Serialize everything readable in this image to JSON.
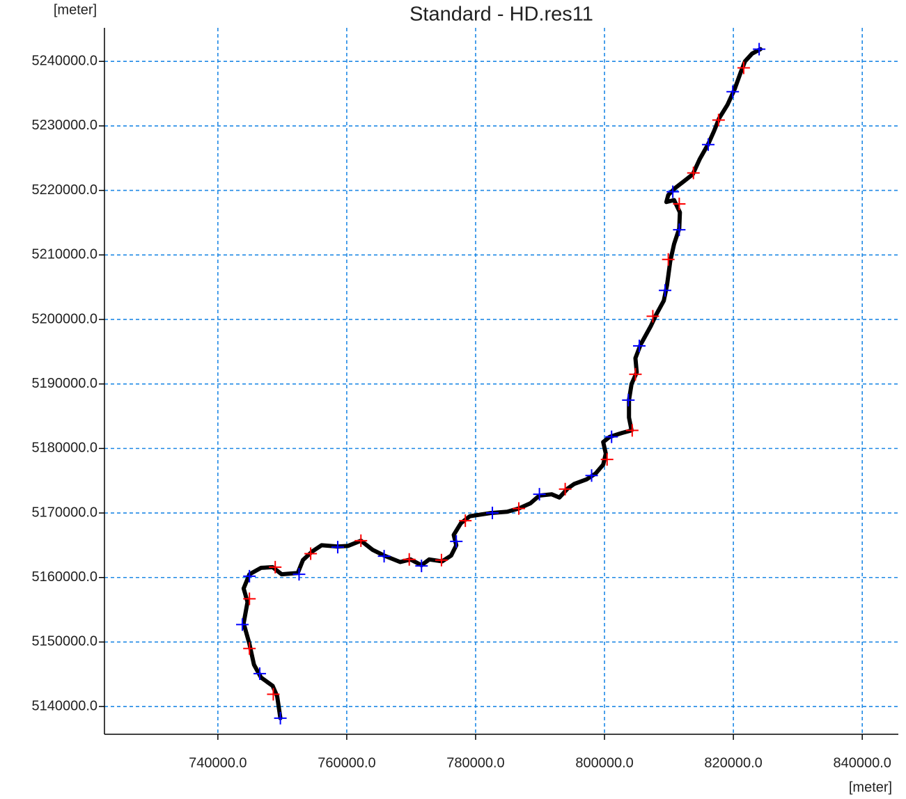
{
  "chart_data": {
    "type": "line",
    "title": "Standard - HD.res11",
    "y_label": "[meter]",
    "x_label": "[meter]",
    "xlim": [
      722400,
      845600
    ],
    "ylim": [
      5135700,
      5245200
    ],
    "xticks": [
      {
        "value": 740000,
        "label": "740000.0"
      },
      {
        "value": 760000,
        "label": "760000.0"
      },
      {
        "value": 780000,
        "label": "780000.0"
      },
      {
        "value": 800000,
        "label": "800000.0"
      },
      {
        "value": 820000,
        "label": "820000.0"
      },
      {
        "value": 840000,
        "label": "840000.0"
      }
    ],
    "yticks": [
      {
        "value": 5140000,
        "label": "5140000.0"
      },
      {
        "value": 5150000,
        "label": "5150000.0"
      },
      {
        "value": 5160000,
        "label": "5160000.0"
      },
      {
        "value": 5170000,
        "label": "5170000.0"
      },
      {
        "value": 5180000,
        "label": "5180000.0"
      },
      {
        "value": 5190000,
        "label": "5190000.0"
      },
      {
        "value": 5200000,
        "label": "5200000.0"
      },
      {
        "value": 5210000,
        "label": "5210000.0"
      },
      {
        "value": 5220000,
        "label": "5220000.0"
      },
      {
        "value": 5230000,
        "label": "5230000.0"
      },
      {
        "value": 5240000,
        "label": "5240000.0"
      }
    ],
    "grid": true,
    "series": [
      {
        "color": "#000000",
        "marker": "none",
        "x": [
          749700,
          749200,
          748500,
          746700,
          745600,
          744900,
          744000,
          744600,
          744000,
          744900,
          746700,
          748500,
          749900,
          752400,
          753200,
          754600,
          756100,
          758600,
          760200,
          762200,
          764000,
          765800,
          768300,
          769900,
          771600,
          772800,
          774800,
          776200,
          777000,
          776600,
          777700,
          779100,
          782400,
          784900,
          786700,
          788500,
          789900,
          791800,
          793000,
          794300,
          795300,
          797200,
          798600,
          799800,
          800200,
          799800,
          800800,
          802700,
          804200,
          803800,
          803800,
          804200,
          805000,
          804800,
          805600,
          807200,
          808000,
          809200,
          809700,
          810200,
          810800,
          811600,
          811700,
          810800,
          809600,
          809900,
          811000,
          812300,
          813700,
          814800,
          816100,
          817000,
          817800,
          819100,
          820200,
          821100,
          821800,
          822900,
          824200
        ],
        "values": [
          5138200,
          5141600,
          5143200,
          5144500,
          5146500,
          5149700,
          5152900,
          5156200,
          5158300,
          5160500,
          5161500,
          5161600,
          5160500,
          5160700,
          5162700,
          5164000,
          5165000,
          5164800,
          5164900,
          5165700,
          5164300,
          5163400,
          5162400,
          5162800,
          5161900,
          5162800,
          5162500,
          5163400,
          5165000,
          5166600,
          5168400,
          5169500,
          5170000,
          5170200,
          5170700,
          5171500,
          5172700,
          5172900,
          5172400,
          5173800,
          5174500,
          5175200,
          5176100,
          5177500,
          5179200,
          5181000,
          5181800,
          5182400,
          5182800,
          5184800,
          5187500,
          5190000,
          5191800,
          5194000,
          5196100,
          5199000,
          5200700,
          5202900,
          5205300,
          5209000,
          5211700,
          5214100,
          5216600,
          5218500,
          5218200,
          5219300,
          5220400,
          5221400,
          5222500,
          5224900,
          5227200,
          5229200,
          5231200,
          5233300,
          5235700,
          5238200,
          5240000,
          5241200,
          5241900
        ]
      },
      {
        "color": "#ff0000",
        "marker": "cross",
        "x": [
          748600,
          744900,
          744900,
          748900,
          754400,
          762200,
          769700,
          774700,
          778400,
          786700,
          793900,
          800400,
          804300,
          804800,
          807500,
          809900,
          811600,
          813800,
          817700,
          821600
        ],
        "values": [
          5141900,
          5149000,
          5156700,
          5161600,
          5163700,
          5165700,
          5162800,
          5162700,
          5168800,
          5170700,
          5173700,
          5178300,
          5182800,
          5191500,
          5200500,
          5209300,
          5217900,
          5222700,
          5230900,
          5239000
        ]
      },
      {
        "color": "#0000ff",
        "marker": "cross",
        "x": [
          749700,
          746500,
          743800,
          744900,
          752600,
          758600,
          765800,
          771600,
          777000,
          782600,
          789900,
          798000,
          801100,
          803700,
          805400,
          809400,
          811600,
          810600,
          816100,
          819900,
          824000
        ],
        "values": [
          5138200,
          5145100,
          5152700,
          5160200,
          5160500,
          5164700,
          5163300,
          5161800,
          5165600,
          5170000,
          5172900,
          5175800,
          5181800,
          5187500,
          5195900,
          5204500,
          5213900,
          5219800,
          5227100,
          5235300,
          5241900
        ]
      }
    ]
  }
}
